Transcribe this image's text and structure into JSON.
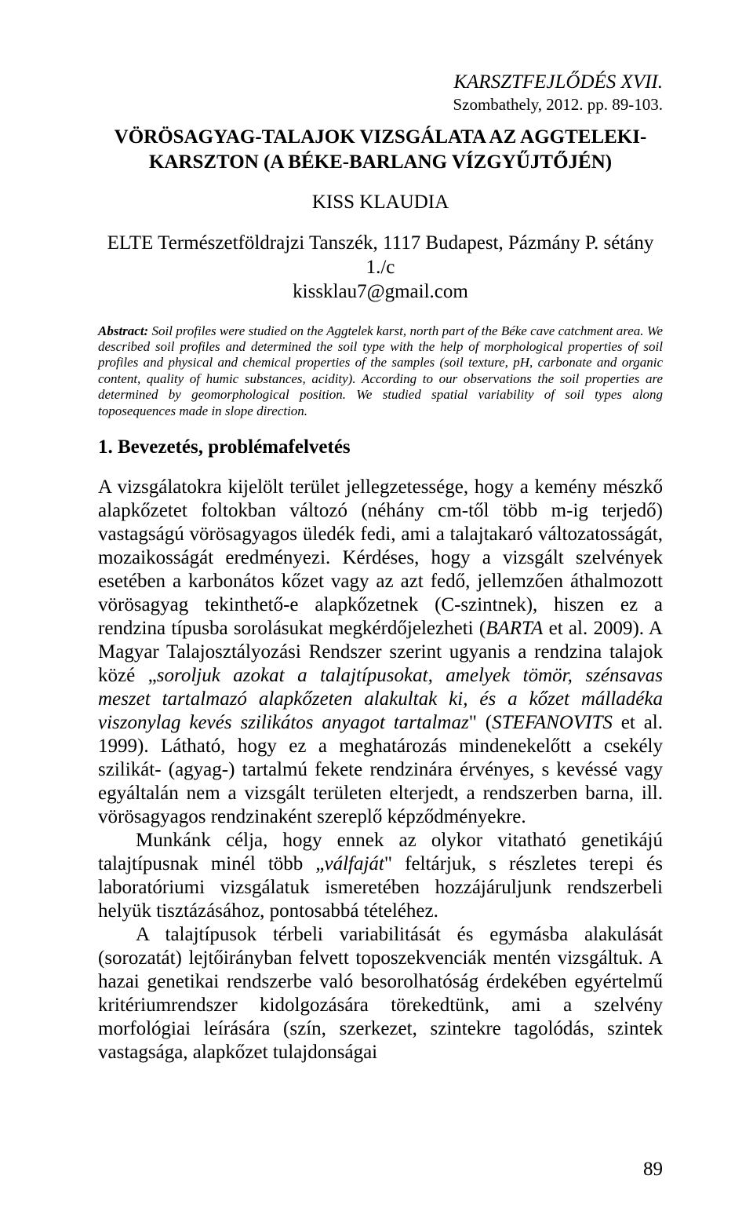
{
  "journal": {
    "title": "KARSZTFEJLŐDÉS XVII.",
    "subtitle": "Szombathely, 2012. pp. 89-103."
  },
  "article": {
    "title": "VÖRÖSAGYAG-TALAJOK VIZSGÁLATA AZ AGGTELEKI-KARSZTON (A BÉKE-BARLANG VÍZGYŰJTŐJÉN)",
    "author": "KISS KLAUDIA",
    "affiliation": "ELTE Természetföldrajzi Tanszék, 1117 Budapest, Pázmány P. sétány 1./c",
    "email": "kissklau7@gmail.com"
  },
  "abstract": {
    "label": "Abstract:",
    "text": " Soil profiles were studied on the Aggtelek karst, north part of the Béke cave catchment area. We described soil profiles and determined the soil type with the help of morphological properties of soil profiles and physical and chemical properties of the samples (soil texture, pH, carbonate and organic content, quality of humic substances, acidity). According to our observations the soil properties are determined by geomorphological position. We studied spatial variability of soil types along toposequences made in slope direction."
  },
  "section1": {
    "title": "1. Bevezetés, problémafelvetés"
  },
  "body": {
    "p1_part1": "A vizsgálatokra kijelölt terület jellegzetessége, hogy a kemény mészkő alapkőzetet foltokban változó (néhány cm-től több m-ig terjedő) vastagságú vörösagyagos üledék fedi, ami a talajtakaró változatosságát, mozaikosságát eredményezi. Kérdéses, hogy a vizsgált szelvények esetében a karbonátos kőzet vagy az azt fedő, jellemzően áthalmozott vörösagyag tekinthető-e alapkőzetnek (C-szintnek), hiszen ez a rendzina típusba sorolásukat megkérdőjelezheti (",
    "p1_cite1": "BARTA",
    "p1_part2": " et al. 2009). A Magyar Talajosztályozási Rendszer szerint ugyanis a rendzina talajok közé „",
    "p1_ital1": "soroljuk azokat a talajtípusokat, amelyek tömör, szénsavas meszet tartalmazó alapkőzeten alakultak ki, és a kőzet málladéka viszonylag kevés szilikátos anyagot tartalmaz",
    "p1_part3": "\" (",
    "p1_cite2": "STEFANOVITS",
    "p1_part4": " et al. 1999). Látható, hogy ez a meghatározás mindenekelőtt a csekély szilikát- (agyag-) tartalmú fekete rendzinára érvényes, s kevéssé vagy egyáltalán nem a vizsgált területen elterjedt, a rendszerben barna, ill. vörösagyagos rendzinaként szereplő képződményekre.",
    "p2_part1": "Munkánk célja, hogy ennek az olykor vitatható genetikájú talajtípusnak minél több „",
    "p2_ital1": "válfaját",
    "p2_part2": "\" feltárjuk, s részletes terepi és laboratóriumi vizsgálatuk ismeretében hozzájáruljunk rendszerbeli helyük tisztázásához, pontosabbá tételéhez.",
    "p3": "A talajtípusok térbeli variabilitását és egymásba alakulását (sorozatát) lejtőirányban felvett toposzekvenciák mentén vizsgáltuk. A hazai genetikai rendszerbe való besorolhatóság érdekében egyértelmű kritériumrendszer kidolgozására törekedtünk, ami a szelvény morfológiai leírására (szín, szerkezet, szintekre tagolódás, szintek vastagsága, alapkőzet tulajdonságai"
  },
  "page_number": "89"
}
